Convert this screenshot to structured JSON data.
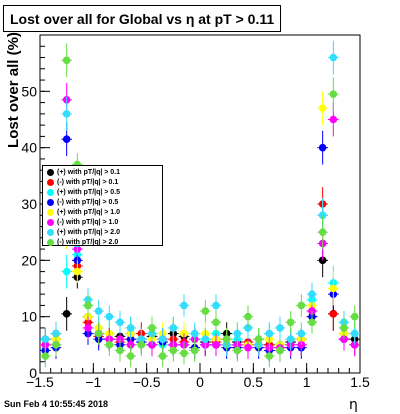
{
  "chart_data": {
    "type": "scatter",
    "title": "Lost over all for Global vs   η at pT > 0.11",
    "ylabel": "Lost over all (%)",
    "xlabel": "η",
    "xlim": [
      -1.5,
      1.5
    ],
    "ylim": [
      0,
      60
    ],
    "x_ticks": [
      "−1.5",
      "−1",
      "−0.5",
      "0",
      "0.5",
      "1",
      "1.5"
    ],
    "y_ticks": [
      "0",
      "10",
      "20",
      "30",
      "40",
      "50"
    ],
    "grid": false,
    "legend_position": "left, middle",
    "series": [
      {
        "name": "(+) with pT/|q| > 0.1",
        "color": "#000000",
        "x": [
          -1.45,
          -1.35,
          -1.25,
          -1.15,
          -1.05,
          -0.95,
          -0.85,
          -0.75,
          -0.65,
          -0.55,
          -0.45,
          -0.35,
          -0.25,
          -0.15,
          -0.05,
          0.05,
          0.15,
          0.25,
          0.35,
          0.45,
          0.55,
          0.65,
          0.75,
          0.85,
          0.95,
          1.05,
          1.15,
          1.25,
          1.35,
          1.45
        ],
        "y": [
          6,
          7,
          10.5,
          17,
          10,
          7,
          6,
          6.5,
          7,
          6,
          6.5,
          6,
          7,
          6.5,
          6,
          5.5,
          6,
          7,
          5.5,
          5,
          6,
          5,
          5,
          5.5,
          6,
          11,
          20,
          10.5,
          7,
          6
        ]
      },
      {
        "name": "(-) with pT/|q| > 0.1",
        "color": "#ff0000",
        "x": [
          -1.45,
          -1.35,
          -1.25,
          -1.15,
          -1.05,
          -0.95,
          -0.85,
          -0.75,
          -0.65,
          -0.55,
          -0.45,
          -0.35,
          -0.25,
          -0.15,
          -0.05,
          0.05,
          0.15,
          0.25,
          0.35,
          0.45,
          0.55,
          0.65,
          0.75,
          0.85,
          0.95,
          1.05,
          1.15,
          1.25,
          1.35,
          1.45
        ],
        "y": [
          5,
          6,
          28,
          19,
          9,
          6.5,
          6,
          5.5,
          6,
          7,
          5,
          6,
          6,
          5.5,
          6,
          5,
          5.5,
          6,
          5,
          5.5,
          5,
          5,
          4.5,
          5,
          5,
          10,
          30,
          10.5,
          6,
          5
        ]
      },
      {
        "name": "(+) with pT/|q| > 0.5",
        "color": "#00ffff",
        "x": [
          -1.45,
          -1.35,
          -1.25,
          -1.15,
          -1.05,
          -0.95,
          -0.85,
          -0.75,
          -0.65,
          -0.55,
          -0.45,
          -0.35,
          -0.25,
          -0.15,
          -0.05,
          0.05,
          0.15,
          0.25,
          0.35,
          0.45,
          0.55,
          0.65,
          0.75,
          0.85,
          0.95,
          1.05,
          1.15,
          1.25,
          1.35,
          1.45
        ],
        "y": [
          4,
          5,
          18,
          21,
          12,
          8,
          7,
          6,
          8,
          6,
          7,
          5,
          8,
          7,
          6,
          6,
          7,
          5,
          6,
          8,
          6,
          7,
          5,
          6,
          5,
          13,
          28,
          16,
          9,
          7
        ]
      },
      {
        "name": "(-) with pT/|q| > 0.5",
        "color": "#0000ff",
        "x": [
          -1.45,
          -1.35,
          -1.25,
          -1.15,
          -1.05,
          -0.95,
          -0.85,
          -0.75,
          -0.65,
          -0.55,
          -0.45,
          -0.35,
          -0.25,
          -0.15,
          -0.05,
          0.05,
          0.15,
          0.25,
          0.35,
          0.45,
          0.55,
          0.65,
          0.75,
          0.85,
          0.95,
          1.05,
          1.15,
          1.25,
          1.35,
          1.45
        ],
        "y": [
          4,
          4.5,
          41.5,
          20,
          7,
          6,
          6,
          5,
          6,
          5.5,
          5,
          5.5,
          5,
          5,
          4.5,
          5,
          5,
          4.5,
          4.5,
          5,
          4.5,
          4,
          4,
          4.5,
          4.5,
          10,
          40,
          14,
          6,
          5
        ]
      },
      {
        "name": "(+) with pT/|q| > 1.0",
        "color": "#ffff00",
        "x": [
          -1.45,
          -1.35,
          -1.25,
          -1.15,
          -1.05,
          -0.95,
          -0.85,
          -0.75,
          -0.65,
          -0.55,
          -0.45,
          -0.35,
          -0.25,
          -0.15,
          -0.05,
          0.05,
          0.15,
          0.25,
          0.35,
          0.45,
          0.55,
          0.65,
          0.75,
          0.85,
          0.95,
          1.05,
          1.15,
          1.25,
          1.35,
          1.45
        ],
        "y": [
          5,
          6,
          25,
          18,
          10,
          8,
          7,
          6,
          7,
          6,
          6,
          7,
          8,
          7,
          6,
          7,
          6,
          6,
          7,
          5,
          6,
          6,
          5,
          5,
          6,
          12,
          47,
          15,
          7,
          5
        ]
      },
      {
        "name": "(-) with pT/|q| > 1.0",
        "color": "#ff00ff",
        "x": [
          -1.45,
          -1.35,
          -1.25,
          -1.15,
          -1.05,
          -0.95,
          -0.85,
          -0.75,
          -0.65,
          -0.55,
          -0.45,
          -0.35,
          -0.25,
          -0.15,
          -0.05,
          0.05,
          0.15,
          0.25,
          0.35,
          0.45,
          0.55,
          0.65,
          0.75,
          0.85,
          0.95,
          1.05,
          1.15,
          1.25,
          1.35,
          1.45
        ],
        "y": [
          5,
          5,
          48.5,
          22,
          8,
          7,
          6,
          6,
          5,
          6,
          5,
          6,
          5,
          5,
          6,
          5,
          5,
          5,
          5,
          4.5,
          5,
          4.5,
          4.5,
          5,
          5,
          11,
          23,
          45,
          6,
          5
        ]
      },
      {
        "name": "(+) with pT/|q| > 2.0",
        "color": "#33ddff",
        "x": [
          -1.45,
          -1.35,
          -1.25,
          -1.15,
          -1.05,
          -0.95,
          -0.85,
          -0.75,
          -0.65,
          -0.55,
          -0.45,
          -0.35,
          -0.25,
          -0.15,
          -0.05,
          0.05,
          0.15,
          0.25,
          0.35,
          0.45,
          0.55,
          0.65,
          0.75,
          0.85,
          0.95,
          1.05,
          1.15,
          1.25,
          1.35,
          1.45
        ],
        "y": [
          6,
          7,
          46,
          23,
          13,
          11,
          10,
          9,
          8,
          6,
          7,
          6,
          8,
          12,
          7,
          6,
          12,
          5,
          7,
          8,
          5,
          7,
          8,
          6,
          7,
          14,
          28,
          56,
          9,
          7
        ]
      },
      {
        "name": "(-) with pT/|q| > 2.0",
        "color": "#66dd44",
        "x": [
          -1.45,
          -1.35,
          -1.25,
          -1.15,
          -1.05,
          -0.95,
          -0.85,
          -0.75,
          -0.65,
          -0.55,
          -0.45,
          -0.35,
          -0.25,
          -0.15,
          -0.05,
          0.05,
          0.15,
          0.25,
          0.35,
          0.45,
          0.55,
          0.65,
          0.75,
          0.85,
          0.95,
          1.05,
          1.15,
          1.25,
          1.35,
          1.45
        ],
        "y": [
          3,
          5,
          55.5,
          37,
          12,
          7,
          5,
          4,
          3,
          5,
          8,
          3,
          4,
          3.5,
          4,
          11,
          9,
          6,
          4,
          10,
          6,
          3,
          4,
          9,
          12,
          9,
          25,
          49.5,
          8,
          10
        ]
      }
    ],
    "error_bar_height": [
      2.0,
      2.0,
      3.0,
      2.0,
      2.0,
      2.0,
      2.0,
      2.0,
      2.0,
      2.0,
      2.0,
      2.0,
      2.0,
      2.0,
      2.0,
      2.0,
      2.0,
      2.0,
      2.0,
      2.0,
      2.0,
      2.0,
      2.0,
      2.0,
      2.0,
      2.0,
      3.0,
      3.0,
      2.0,
      2.0
    ]
  },
  "footer": {
    "timestamp": "Sun Feb  4 10:55:45 2018"
  }
}
